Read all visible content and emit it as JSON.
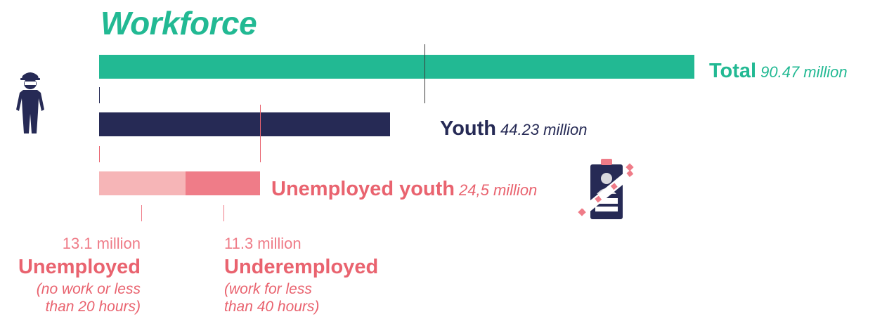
{
  "title": "Workforce",
  "colors": {
    "total": "#22b993",
    "youth": "#262a55",
    "unemployed_light": "#f6b5b7",
    "underemployed": "#ef7c88",
    "accent_red": "#e9636f"
  },
  "rows": [
    {
      "id": "total",
      "name": "Total",
      "value_label": "90.47 million"
    },
    {
      "id": "youth",
      "name": "Youth",
      "value_label": "44.23 million"
    },
    {
      "id": "unemployed_youth",
      "name": "Unemployed youth",
      "value_label": "24,5 million"
    }
  ],
  "segments": [
    {
      "id": "unemployed",
      "value_label": "13.1 million",
      "name": "Unemployed",
      "note": "(no work or less than 20 hours)"
    },
    {
      "id": "underemployed",
      "value_label": "11.3 million",
      "name": "Underemployed",
      "note": "(work for less than 40 hours)"
    }
  ],
  "icons": {
    "worker": "worker-icon",
    "id_badge": "crossed-id-badge-icon"
  },
  "chart_data": {
    "type": "bar",
    "title": "Workforce",
    "categories": [
      "Total",
      "Youth",
      "Unemployed youth"
    ],
    "values": [
      90.47,
      44.23,
      24.5
    ],
    "unit": "million",
    "stacked_breakdown": {
      "category": "Unemployed youth",
      "series": [
        {
          "name": "Unemployed",
          "values": [
            13.1
          ]
        },
        {
          "name": "Underemployed",
          "values": [
            11.3
          ]
        }
      ]
    }
  }
}
